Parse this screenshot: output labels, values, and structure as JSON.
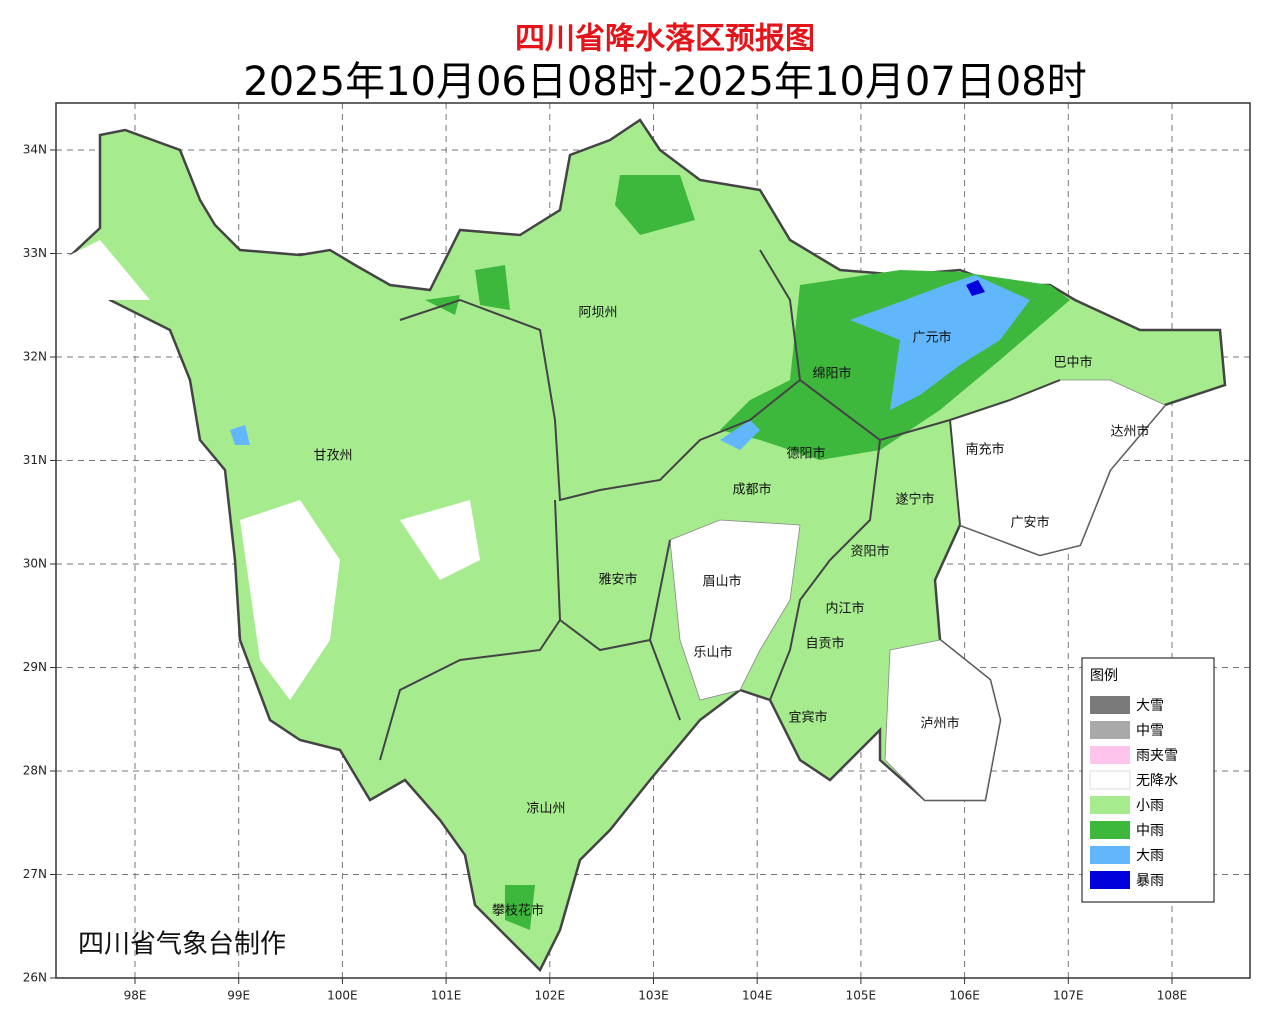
{
  "header": {
    "title": "四川省降水落区预报图",
    "subtitle": "2025年10月06日08时-2025年10月07日08时"
  },
  "map": {
    "lon_ticks": [
      "98E",
      "99E",
      "100E",
      "101E",
      "102E",
      "103E",
      "104E",
      "105E",
      "106E",
      "107E",
      "108E"
    ],
    "lat_ticks": [
      "34N",
      "33N",
      "32N",
      "31N",
      "30N",
      "29N",
      "28N",
      "27N",
      "26N"
    ],
    "regions": [
      "阿坝州",
      "甘孜州",
      "绵阳市",
      "广元市",
      "巴中市",
      "达州市",
      "南充市",
      "德阳市",
      "成都市",
      "遂宁市",
      "广安市",
      "资阳市",
      "雅安市",
      "眉山市",
      "内江市",
      "自贡市",
      "乐山市",
      "宜宾市",
      "泸州市",
      "凉山州",
      "攀枝花市"
    ]
  },
  "legend": {
    "title": "图例",
    "items": [
      {
        "label": "大雪",
        "color": "#7a7a7a"
      },
      {
        "label": "中雪",
        "color": "#a9a9a9"
      },
      {
        "label": "雨夹雪",
        "color": "#ffc4ec"
      },
      {
        "label": "无降水",
        "color": "#ffffff"
      },
      {
        "label": "小雨",
        "color": "#a6ec8e"
      },
      {
        "label": "中雨",
        "color": "#3db83d"
      },
      {
        "label": "大雨",
        "color": "#62b6fc"
      },
      {
        "label": "暴雨",
        "color": "#0000dc"
      }
    ]
  },
  "footer": {
    "credit": "四川省气象台制作"
  }
}
